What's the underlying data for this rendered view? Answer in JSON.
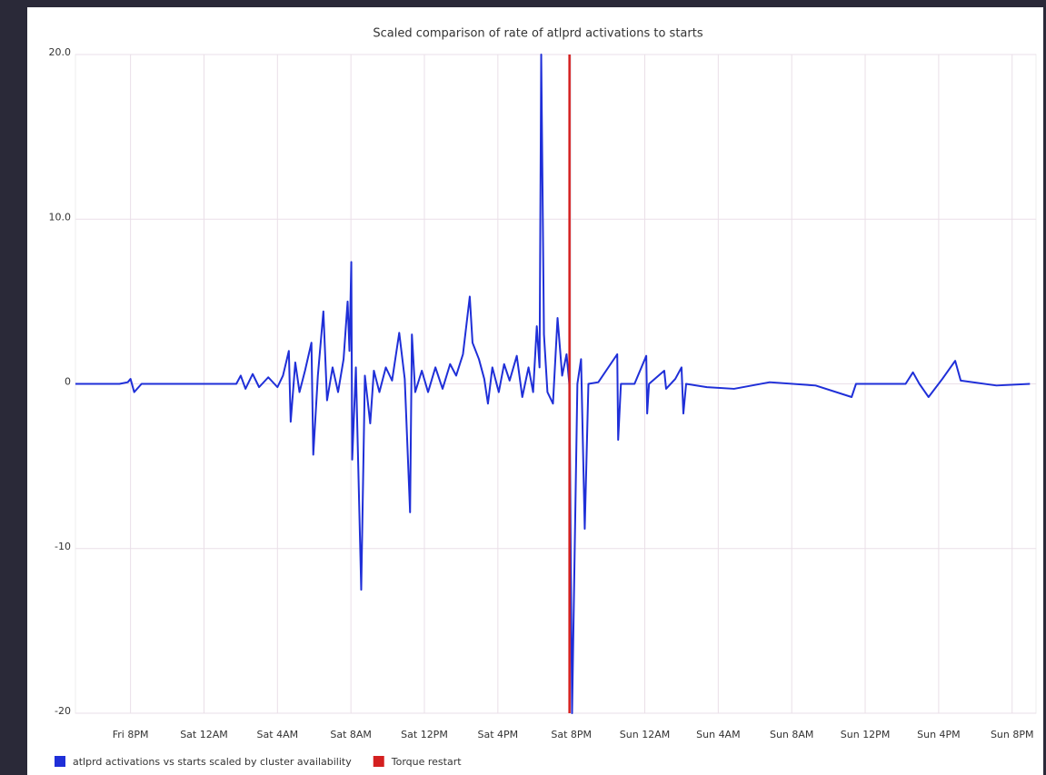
{
  "chart_data": {
    "type": "line",
    "title": "Scaled comparison of rate of atlprd activations to starts",
    "xlim": [
      17,
      69.3
    ],
    "xticks": [
      {
        "value": 20,
        "label": "Fri 8PM"
      },
      {
        "value": 24,
        "label": "Sat 12AM"
      },
      {
        "value": 28,
        "label": "Sat 4AM"
      },
      {
        "value": 32,
        "label": "Sat 8AM"
      },
      {
        "value": 36,
        "label": "Sat 12PM"
      },
      {
        "value": 40,
        "label": "Sat 4PM"
      },
      {
        "value": 44,
        "label": "Sat 8PM"
      },
      {
        "value": 48,
        "label": "Sun 12AM"
      },
      {
        "value": 52,
        "label": "Sun 4AM"
      },
      {
        "value": 56,
        "label": "Sun 8AM"
      },
      {
        "value": 60,
        "label": "Sun 12PM"
      },
      {
        "value": 64,
        "label": "Sun 4PM"
      },
      {
        "value": 68,
        "label": "Sun 8PM"
      }
    ],
    "ylim": [
      -20,
      20
    ],
    "yticks": [
      {
        "value": 20,
        "label": "20.0"
      },
      {
        "value": 10,
        "label": "10.0"
      },
      0,
      -10,
      -20
    ],
    "grid": true,
    "legend": "bottom-left",
    "series": [
      {
        "name": "atlprd activations vs starts scaled by cluster availability",
        "color": "#1f2fd8",
        "x": [
          17.0,
          17.9,
          19.4,
          19.85,
          20.0,
          20.2,
          20.6,
          22.8,
          25.76,
          26.0,
          26.26,
          26.65,
          27.0,
          27.5,
          28.0,
          28.3,
          28.62,
          28.72,
          28.97,
          29.2,
          29.5,
          29.85,
          29.95,
          30.2,
          30.5,
          30.7,
          31.0,
          31.3,
          31.6,
          31.82,
          31.92,
          32.02,
          32.07,
          32.27,
          32.56,
          32.76,
          33.05,
          33.25,
          33.55,
          33.9,
          34.24,
          34.63,
          34.93,
          35.22,
          35.32,
          35.5,
          35.86,
          36.2,
          36.6,
          36.99,
          37.4,
          37.73,
          38.1,
          38.47,
          38.62,
          38.97,
          39.26,
          39.46,
          39.7,
          40.05,
          40.34,
          40.64,
          41.03,
          41.33,
          41.67,
          41.92,
          42.12,
          42.27,
          42.36,
          42.51,
          42.7,
          43.0,
          43.25,
          43.5,
          43.74,
          43.89,
          44.04,
          44.33,
          44.53,
          44.73,
          44.93,
          45.47,
          46.5,
          46.55,
          46.7,
          47.44,
          48.08,
          48.13,
          48.23,
          49.06,
          49.16,
          49.66,
          50.0,
          50.1,
          50.25,
          51.38,
          52.86,
          54.8,
          57.3,
          59.26,
          59.5,
          62.2,
          62.6,
          62.95,
          63.45,
          64.2,
          64.9,
          65.2,
          67.15,
          68.97
        ],
        "values": [
          0,
          0,
          0,
          0.1,
          0.3,
          -0.5,
          0,
          0,
          0,
          0.5,
          -0.3,
          0.6,
          -0.2,
          0.4,
          -0.2,
          0.5,
          2,
          -2.3,
          1.3,
          -0.5,
          0.8,
          2.5,
          -4.3,
          0.5,
          4.4,
          -1,
          1,
          -0.5,
          1.5,
          5,
          2,
          7.4,
          -4.6,
          1,
          -12.5,
          0.5,
          -2.4,
          0.8,
          -0.5,
          1,
          0.2,
          3.1,
          0.3,
          -7.8,
          3,
          -0.5,
          0.8,
          -0.5,
          1,
          -0.3,
          1.2,
          0.5,
          1.8,
          5.3,
          2.5,
          1.5,
          0.3,
          -1.2,
          1,
          -0.5,
          1.2,
          0.2,
          1.7,
          -0.8,
          1,
          -0.5,
          3.5,
          1,
          20,
          3,
          -0.5,
          -1.2,
          4,
          0.5,
          1.8,
          0,
          -20,
          0,
          1.5,
          -8.8,
          0,
          0.1,
          1.8,
          -3.4,
          0,
          0,
          1.7,
          -1.8,
          0,
          0.8,
          -0.3,
          0.3,
          1.0,
          -1.8,
          0,
          -0.2,
          -0.3,
          0.1,
          -0.1,
          -0.8,
          0,
          0,
          0.7,
          0,
          -0.8,
          0.3,
          1.4,
          0.2,
          -0.1,
          0
        ]
      },
      {
        "name": "Torque restart",
        "color": "#d42020",
        "x": [
          43.9,
          43.9
        ],
        "values": [
          -20,
          20
        ]
      }
    ]
  }
}
